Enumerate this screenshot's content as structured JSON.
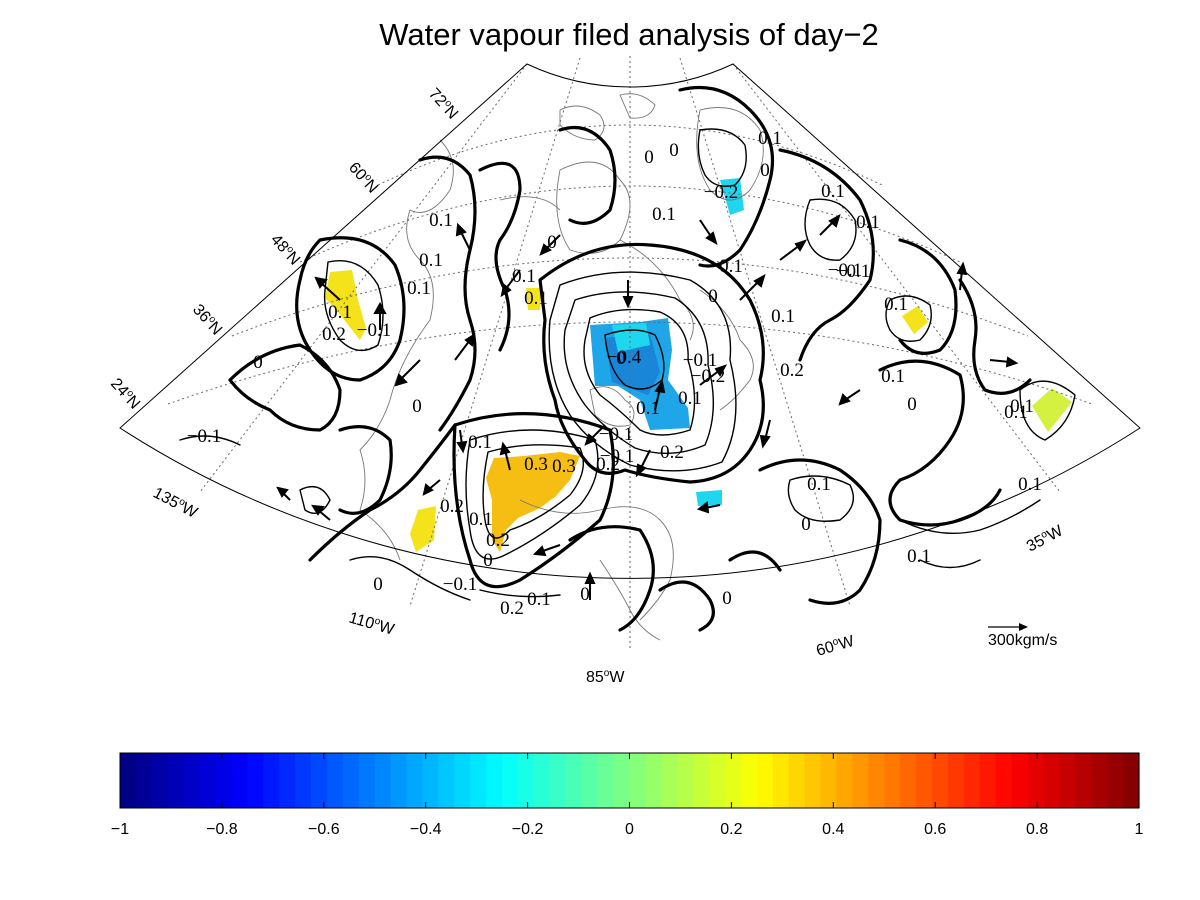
{
  "title": "Water vapour filed analysis of day−2",
  "lat_labels": [
    {
      "deg": "72",
      "hemi": "N"
    },
    {
      "deg": "60",
      "hemi": "N"
    },
    {
      "deg": "48",
      "hemi": "N"
    },
    {
      "deg": "36",
      "hemi": "N"
    },
    {
      "deg": "24",
      "hemi": "N"
    }
  ],
  "lon_labels": [
    {
      "deg": "135",
      "hemi": "W"
    },
    {
      "deg": "110",
      "hemi": "W"
    },
    {
      "deg": "85",
      "hemi": "W"
    },
    {
      "deg": "60",
      "hemi": "W"
    },
    {
      "deg": "35",
      "hemi": "W"
    }
  ],
  "reference_vector": {
    "label": "300kgm/s"
  },
  "contour_labels": [
    "0",
    "0",
    "0",
    "0.1",
    "0.1",
    "−0.1",
    "−0.1",
    "0.1",
    "0.1",
    "0.1",
    "0.1",
    "−0.1",
    "0",
    "0.1",
    "0.1",
    "−0.4",
    "0.2",
    "0.1",
    "0.3",
    "0.2",
    "0.1",
    "0.1",
    "0",
    "0.2",
    "0.1",
    "0.2",
    "0.3",
    "0.2",
    "−0.1",
    "0",
    "0.1",
    "−0.2",
    "−0.2",
    "−0.1",
    "0.1",
    "0",
    "0.1",
    "0",
    "0.1",
    "0",
    "0.1",
    "0.2",
    "0.1",
    "0.1",
    "0",
    "−0.1",
    "0",
    "0.1",
    "0.1",
    "0",
    "0",
    "−0.1",
    "0.2",
    "0.1",
    "0",
    "0.1",
    "0.1",
    "−0.1"
  ],
  "colorbar": {
    "ticks": [
      "−1",
      "−0.8",
      "−0.6",
      "−0.4",
      "−0.2",
      "0",
      "0.2",
      "0.4",
      "0.6",
      "0.8",
      "1"
    ],
    "range": [
      -1,
      1
    ],
    "colormap": "jet",
    "n_bands": 64
  },
  "colors": {
    "cyan_shade": "#1ed6ee",
    "blue_shade": "#1ea6e8",
    "deep_blue_shade": "#1a7fd6",
    "yellow_shade": "#f4e21a",
    "orange_shade": "#f6be12",
    "lime_shade": "#d4f040",
    "contour": "#000000"
  }
}
